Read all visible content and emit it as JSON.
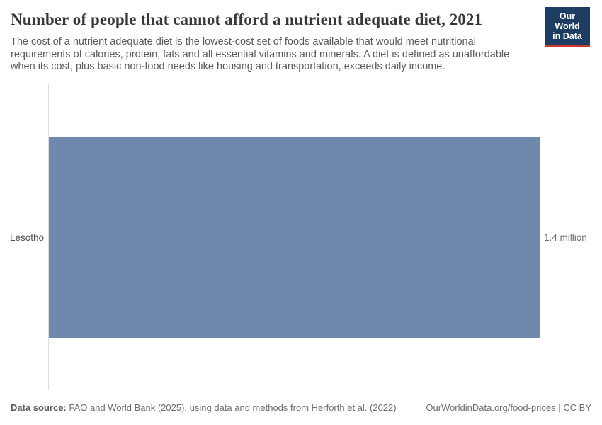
{
  "header": {
    "title": "Number of people that cannot afford a nutrient adequate diet, 2021",
    "subtitle": "The cost of a nutrient adequate diet is the lowest-cost set of foods available that would meet nutritional requirements of calories, protein, fats and all essential vitamins and minerals. A diet is defined as unaffordable when its cost, plus basic non-food needs like housing and transportation, exceeds daily income.",
    "logo": {
      "line1": "Our World",
      "line2": "in Data",
      "bg_color": "#1d3d63",
      "accent_color": "#d3352b"
    }
  },
  "chart_data": {
    "type": "bar",
    "orientation": "horizontal",
    "title": "Number of people that cannot afford a nutrient adequate diet, 2021",
    "year": "2021",
    "categories": [
      "Lesotho"
    ],
    "values": [
      1400000
    ],
    "value_labels": [
      "1.4 million"
    ],
    "xlabel": "",
    "ylabel": "",
    "xlim": [
      0,
      1400000
    ],
    "grid": false,
    "legend": "none",
    "bar_color": "#6e88ae",
    "axis_color": "#dedede"
  },
  "footer": {
    "datasource_label": "Data source:",
    "datasource_text": " FAO and World Bank (2025), using data and methods from Herforth et al. (2022)",
    "link_text": "OurWorldinData.org/food-prices | CC BY"
  }
}
